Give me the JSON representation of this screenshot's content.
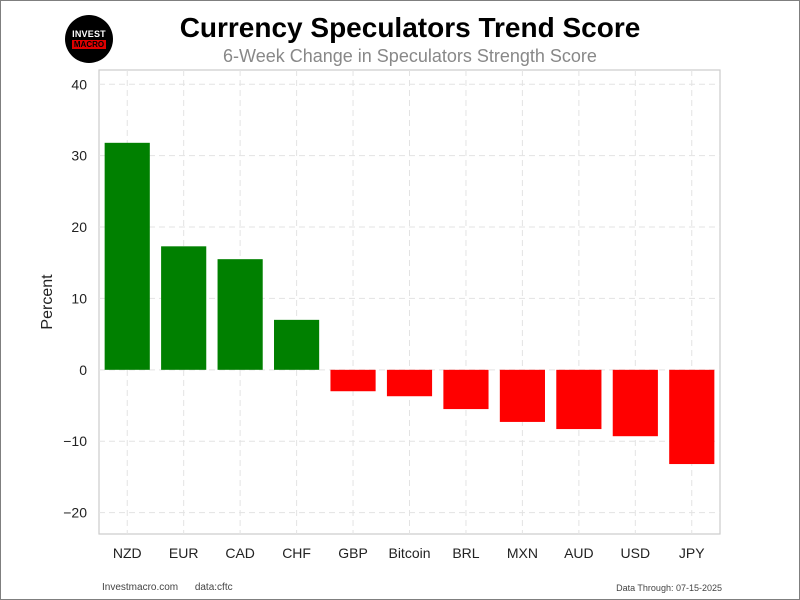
{
  "branding": {
    "logo_top": "INVEST",
    "logo_bottom": "MACRO"
  },
  "footer": {
    "site": "Investmacro.com",
    "source": "data:cftc",
    "data_through": "Data Through: 07-15-2025"
  },
  "colors": {
    "positive": "#008000",
    "negative": "#ff0000",
    "grid": "#e3e3e3",
    "axis": "#cccccc"
  },
  "chart_data": {
    "type": "bar",
    "title": "Currency Speculators Trend Score",
    "subtitle": "6-Week Change in Speculators Strength Score",
    "xlabel": "",
    "ylabel": "Percent",
    "categories": [
      "NZD",
      "EUR",
      "CAD",
      "CHF",
      "GBP",
      "Bitcoin",
      "BRL",
      "MXN",
      "AUD",
      "USD",
      "JPY"
    ],
    "values": [
      31.8,
      17.3,
      15.5,
      7.0,
      -3.0,
      -3.7,
      -5.5,
      -7.3,
      -8.3,
      -9.3,
      -13.2
    ],
    "ylim": [
      -23,
      42
    ],
    "yticks": [
      -20,
      -10,
      0,
      10,
      20,
      30,
      40
    ],
    "grid": true,
    "grid_style": "dashed",
    "legend": "none"
  }
}
